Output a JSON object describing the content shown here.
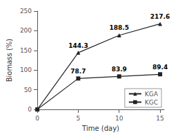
{
  "chart_data": {
    "type": "line",
    "xlabel": "Time (day)",
    "ylabel": "Biomass (%)",
    "series": [
      {
        "name": "KGA",
        "color": "#222222",
        "marker": "triangle",
        "x": [
          0,
          5,
          10,
          15
        ],
        "values": [
          0,
          144.3,
          188.5,
          217.6
        ],
        "value_labels": [
          null,
          "144.3",
          "188.5",
          "217.6"
        ]
      },
      {
        "name": "KGC",
        "color": "#222222",
        "marker": "square",
        "x": [
          0,
          5,
          10,
          15
        ],
        "values": [
          0,
          78.7,
          83.9,
          89.4
        ],
        "value_labels": [
          null,
          "78.7",
          "83.9",
          "89.4"
        ]
      }
    ],
    "xlim": [
      0,
      15.5
    ],
    "xticks": [
      0,
      5,
      10,
      15
    ],
    "ylim": [
      0,
      250
    ],
    "yticks": [
      0,
      50,
      100,
      150,
      200,
      250
    ],
    "data_labels": true,
    "legend": "lower right",
    "grid": false
  }
}
